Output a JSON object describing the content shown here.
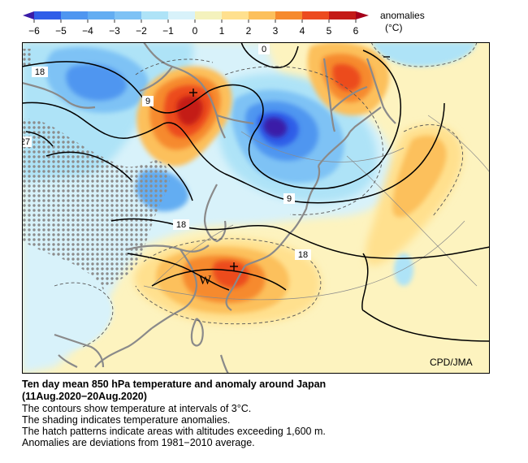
{
  "legend": {
    "ticks": [
      "−6",
      "−5",
      "−4",
      "−3",
      "−2",
      "−1",
      "0",
      "1",
      "2",
      "3",
      "4",
      "5",
      "6"
    ],
    "label_line1": "anomalies",
    "label_line2": "(°C)",
    "colors": [
      "#3a1ca8",
      "#2f5de8",
      "#4f96f0",
      "#7ec2f5",
      "#aee3f7",
      "#d8f2fa",
      "#f4f2bd",
      "#ffe08e",
      "#fcc05c",
      "#f68a2d",
      "#ec4b1f",
      "#c41a17",
      "#a5001a"
    ]
  },
  "map": {
    "contour_labels": [
      "0",
      "18",
      "9",
      "27",
      "9",
      "18",
      "18"
    ],
    "warm_marker": "W",
    "credit": "CPD/JMA",
    "colors": {
      "ocean_warm": "#fdf3bf",
      "coast": "#8a8a8a",
      "contour": "#000000",
      "hatch": "#8c8c8c"
    }
  },
  "caption": {
    "title_line1": "Ten day mean 850 hPa temperature and anomaly around Japan",
    "title_line2": "(11Aug.2020−20Aug.2020)",
    "lines": [
      "The contours show temperature at intervals of 3°C.",
      "The shading indicates temperature anomalies.",
      "The hatch patterns indicate areas with altitudes exceeding 1,600 m.",
      "Anomalies are deviations from 1981−2010 average."
    ]
  }
}
